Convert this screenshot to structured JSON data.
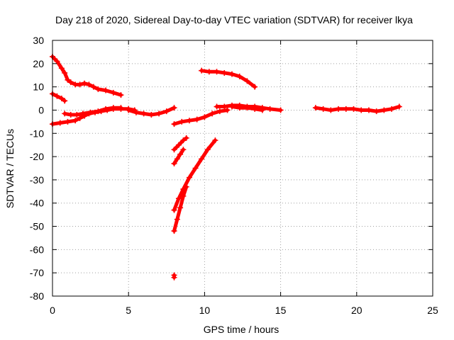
{
  "chart_data": {
    "type": "scatter",
    "title": "Day 218 of 2020, Sidereal Day-to-day VTEC variation (SDTVAR) for receiver lkya",
    "xlabel": "GPS time / hours",
    "ylabel": "SDTVAR / TECUs",
    "xlim": [
      0,
      25
    ],
    "ylim": [
      -80,
      30
    ],
    "xticks": [
      0,
      5,
      10,
      15,
      20,
      25
    ],
    "yticks": [
      30,
      20,
      10,
      0,
      -10,
      -20,
      -30,
      -40,
      -50,
      -60,
      -70,
      -80
    ],
    "grid": true,
    "series": [
      {
        "color": "#ff0000",
        "marker": "plus",
        "tracks": [
          [
            [
              0.0,
              23
            ],
            [
              0.3,
              21
            ],
            [
              0.6,
              18
            ],
            [
              0.8,
              16
            ],
            [
              1.0,
              13
            ],
            [
              1.2,
              12
            ],
            [
              1.5,
              11
            ],
            [
              1.8,
              11
            ],
            [
              2.1,
              11.5
            ],
            [
              2.4,
              11
            ],
            [
              2.7,
              10
            ],
            [
              3.0,
              9
            ],
            [
              3.5,
              8.5
            ],
            [
              4.0,
              7.5
            ],
            [
              4.5,
              6.5
            ]
          ],
          [
            [
              0.0,
              7
            ],
            [
              0.3,
              6
            ],
            [
              0.6,
              5
            ],
            [
              0.8,
              4
            ]
          ],
          [
            [
              0.0,
              -6
            ],
            [
              0.5,
              -5.5
            ],
            [
              1.0,
              -5
            ],
            [
              1.5,
              -4.5
            ],
            [
              1.8,
              -3.5
            ],
            [
              2.1,
              -2.5
            ],
            [
              2.4,
              -1.5
            ],
            [
              2.8,
              -1
            ],
            [
              3.2,
              -0.5
            ],
            [
              3.6,
              0
            ],
            [
              4.0,
              0.5
            ],
            [
              4.5,
              0.5
            ],
            [
              5.0,
              0.5
            ],
            [
              5.4,
              0
            ]
          ],
          [
            [
              0.8,
              -1.5
            ],
            [
              1.2,
              -2
            ],
            [
              1.6,
              -2
            ],
            [
              2.0,
              -1.5
            ],
            [
              2.5,
              -1
            ],
            [
              3.0,
              -0.5
            ],
            [
              3.5,
              0.5
            ],
            [
              4.0,
              1
            ],
            [
              4.5,
              1
            ]
          ],
          [
            [
              5.0,
              0
            ],
            [
              5.5,
              -1
            ],
            [
              6.0,
              -1.5
            ],
            [
              6.5,
              -2
            ],
            [
              7.0,
              -1.5
            ],
            [
              7.5,
              -0.5
            ],
            [
              8.0,
              1
            ]
          ],
          [
            [
              8.0,
              -6
            ],
            [
              8.5,
              -5
            ],
            [
              9.0,
              -4.5
            ],
            [
              9.5,
              -4
            ],
            [
              10.0,
              -3
            ],
            [
              10.5,
              -1.5
            ],
            [
              11.0,
              -0.5
            ],
            [
              11.5,
              0
            ]
          ],
          [
            [
              8.0,
              -17
            ],
            [
              8.3,
              -15
            ],
            [
              8.6,
              -13
            ],
            [
              8.8,
              -12
            ]
          ],
          [
            [
              8.0,
              -23
            ],
            [
              8.2,
              -21
            ],
            [
              8.4,
              -19
            ],
            [
              8.6,
              -17
            ]
          ],
          [
            [
              8.0,
              -43
            ],
            [
              8.3,
              -38
            ],
            [
              8.6,
              -34
            ],
            [
              9.0,
              -29
            ],
            [
              9.4,
              -25
            ],
            [
              9.8,
              -21
            ],
            [
              10.2,
              -17
            ],
            [
              10.7,
              -13
            ]
          ],
          [
            [
              8.0,
              -52
            ],
            [
              8.2,
              -47
            ],
            [
              8.4,
              -42
            ],
            [
              8.6,
              -37
            ],
            [
              8.8,
              -33
            ]
          ],
          [
            [
              8.0,
              -71
            ],
            [
              8.0,
              -72
            ]
          ],
          [
            [
              9.8,
              17
            ],
            [
              10.3,
              16.5
            ],
            [
              10.8,
              16.5
            ],
            [
              11.3,
              16
            ],
            [
              11.8,
              15.5
            ],
            [
              12.3,
              14.5
            ],
            [
              12.8,
              12.5
            ],
            [
              13.3,
              10
            ]
          ],
          [
            [
              10.8,
              1.5
            ],
            [
              11.3,
              1.5
            ],
            [
              11.8,
              2
            ],
            [
              12.3,
              2
            ],
            [
              12.8,
              1.5
            ],
            [
              13.3,
              1.5
            ],
            [
              13.8,
              1
            ],
            [
              14.3,
              0.5
            ],
            [
              15.0,
              0
            ]
          ],
          [
            [
              11.8,
              1.5
            ],
            [
              12.3,
              1
            ],
            [
              12.8,
              1
            ],
            [
              13.3,
              0.5
            ],
            [
              13.8,
              0
            ]
          ],
          [
            [
              17.3,
              1
            ],
            [
              17.8,
              0.5
            ],
            [
              18.3,
              0
            ],
            [
              18.8,
              0.5
            ],
            [
              19.3,
              0.5
            ],
            [
              19.8,
              0.5
            ],
            [
              20.3,
              0
            ],
            [
              20.8,
              0
            ],
            [
              21.3,
              -0.5
            ],
            [
              21.8,
              0
            ],
            [
              22.3,
              0.5
            ],
            [
              22.8,
              1.5
            ]
          ]
        ]
      }
    ]
  }
}
